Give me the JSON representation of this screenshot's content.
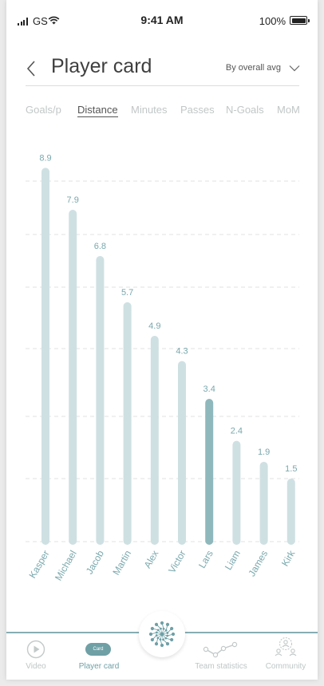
{
  "status_bar": {
    "carrier": "GS",
    "time": "9:41 AM",
    "battery": "100%"
  },
  "header": {
    "title": "Player card",
    "sort_label": "By overall avg"
  },
  "tabs": [
    {
      "label": "Goals/p",
      "active": false
    },
    {
      "label": "Distance",
      "active": true
    },
    {
      "label": "Minutes",
      "active": false
    },
    {
      "label": "Passes",
      "active": false
    },
    {
      "label": "N-Goals",
      "active": false
    },
    {
      "label": "MoM",
      "active": false
    }
  ],
  "chart_data": {
    "type": "bar",
    "categories": [
      "Kasper",
      "Michael",
      "Jacob",
      "Martin",
      "Alex",
      "Victor",
      "Lars",
      "Liam",
      "James",
      "Kirk"
    ],
    "values": [
      8.9,
      7.9,
      6.8,
      5.7,
      4.9,
      4.3,
      3.4,
      2.4,
      1.9,
      1.5
    ],
    "value_labels": [
      "8.9",
      "7.9",
      "6.8",
      "5.7",
      "4.9",
      "4.3",
      "3.4",
      "2.4",
      "1.9",
      "1.5"
    ],
    "highlight_category": "Lars",
    "ylim": [
      0,
      9.8
    ],
    "grid": "horizontal dashed",
    "colors": {
      "bar": "#cfe0e3",
      "highlight": "#8fb8bd",
      "label": "#7aa8ad"
    }
  },
  "bottom_nav": {
    "items": [
      {
        "label": "Video",
        "icon": "play-circle-icon",
        "active": false
      },
      {
        "label": "Player card",
        "icon": "card-icon",
        "active": true,
        "badge": "Card"
      },
      {
        "label": "Team statistics",
        "icon": "line-graph-icon",
        "active": false
      },
      {
        "label": "Community",
        "icon": "community-icon",
        "active": false
      }
    ],
    "center_icon": "network-icon"
  }
}
